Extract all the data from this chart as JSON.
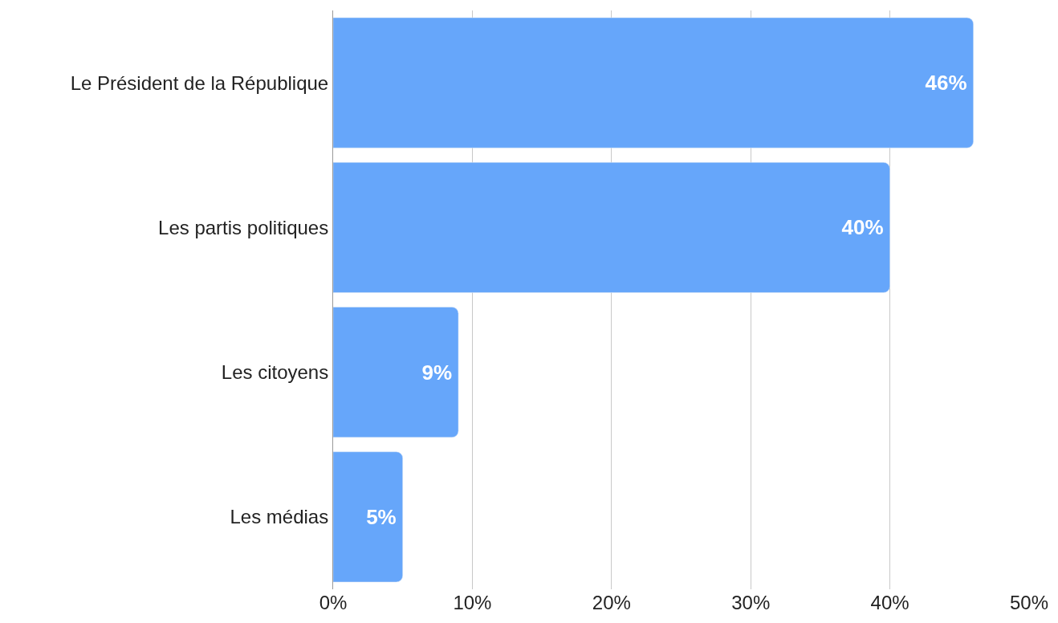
{
  "chart_data": {
    "type": "bar",
    "orientation": "horizontal",
    "categories": [
      "Le Président de la République",
      "Les partis politiques",
      "Les citoyens",
      "Les médias"
    ],
    "values": [
      46,
      40,
      9,
      5
    ],
    "value_labels": [
      "46%",
      "40%",
      "9%",
      "5%"
    ],
    "color": "#66a6fa",
    "xlim": [
      0,
      50
    ],
    "xticks": [
      {
        "value": 0,
        "label": "0%"
      },
      {
        "value": 10,
        "label": "10%"
      },
      {
        "value": 20,
        "label": "20%"
      },
      {
        "value": 30,
        "label": "30%"
      },
      {
        "value": 40,
        "label": "40%"
      },
      {
        "value": 50,
        "label": "50%"
      }
    ],
    "grid": "x"
  }
}
